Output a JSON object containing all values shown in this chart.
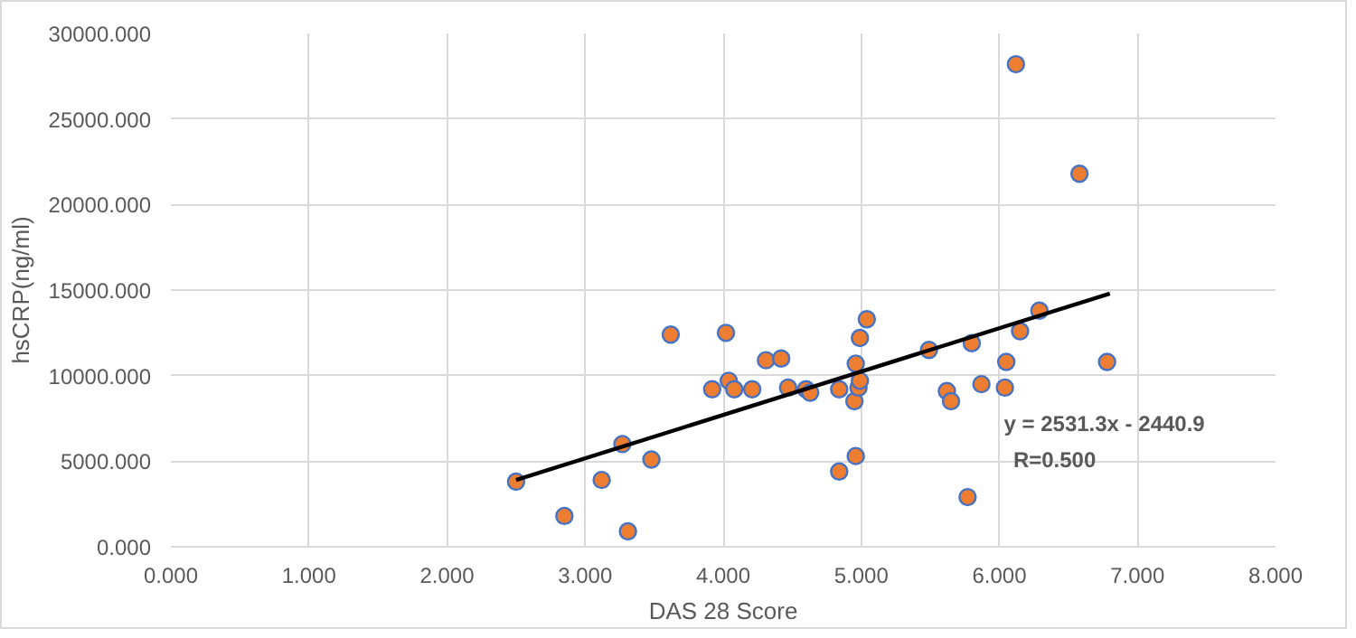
{
  "chart_data": {
    "type": "scatter",
    "xlabel": "DAS 28 Score",
    "ylabel": "hsCRP(ng/ml)",
    "xlim": [
      0,
      8
    ],
    "xticks": [
      {
        "value": 0,
        "label": "0.000"
      },
      {
        "value": 1,
        "label": "1.000"
      },
      {
        "value": 2,
        "label": "2.000"
      },
      {
        "value": 3,
        "label": "3.000"
      },
      {
        "value": 4,
        "label": "4.000"
      },
      {
        "value": 5,
        "label": "5.000"
      },
      {
        "value": 6,
        "label": "6.000"
      },
      {
        "value": 7,
        "label": "7.000"
      },
      {
        "value": 8,
        "label": "8.000"
      }
    ],
    "ylim": [
      0,
      30000
    ],
    "yticks": [
      {
        "value": 0,
        "label": "0.000"
      },
      {
        "value": 5000,
        "label": "5000.000"
      },
      {
        "value": 10000,
        "label": "10000.000"
      },
      {
        "value": 15000,
        "label": "15000.000"
      },
      {
        "value": 20000,
        "label": "20000.000"
      },
      {
        "value": 25000,
        "label": "25000.000"
      },
      {
        "value": 30000,
        "label": "30000.000"
      }
    ],
    "grid": true,
    "series": [
      {
        "color": "#ed7d31",
        "marker": "circle",
        "x": [
          2.5,
          2.85,
          3.12,
          3.31,
          3.27,
          3.48,
          3.62,
          3.92,
          4.02,
          4.04,
          4.08,
          4.21,
          4.31,
          4.42,
          4.47,
          4.6,
          4.63,
          4.84,
          4.84,
          4.96,
          4.95,
          4.96,
          4.98,
          4.99,
          4.99,
          5.04,
          5.49,
          6.12,
          6.58,
          6.29,
          6.15,
          5.8,
          6.05,
          6.78,
          5.87,
          6.04,
          5.62,
          5.65,
          5.77
        ],
        "values": [
          3800,
          1800,
          3900,
          900,
          6000,
          5100,
          12400,
          9200,
          12500,
          9700,
          9200,
          9200,
          10900,
          11000,
          9300,
          9200,
          9000,
          9200,
          4400,
          5300,
          8500,
          10700,
          9300,
          9700,
          12200,
          13300,
          11500,
          28200,
          21800,
          13800,
          12600,
          11900,
          10800,
          10800,
          9500,
          9300,
          9100,
          8500,
          2900
        ]
      },
      {
        "type": "line",
        "color": "#000000",
        "x": [
          2.5,
          6.8
        ],
        "values": [
          3900,
          14800
        ]
      }
    ],
    "annotations": [
      "y = 2531.3x - 2440.9",
      "R=0.500"
    ]
  }
}
